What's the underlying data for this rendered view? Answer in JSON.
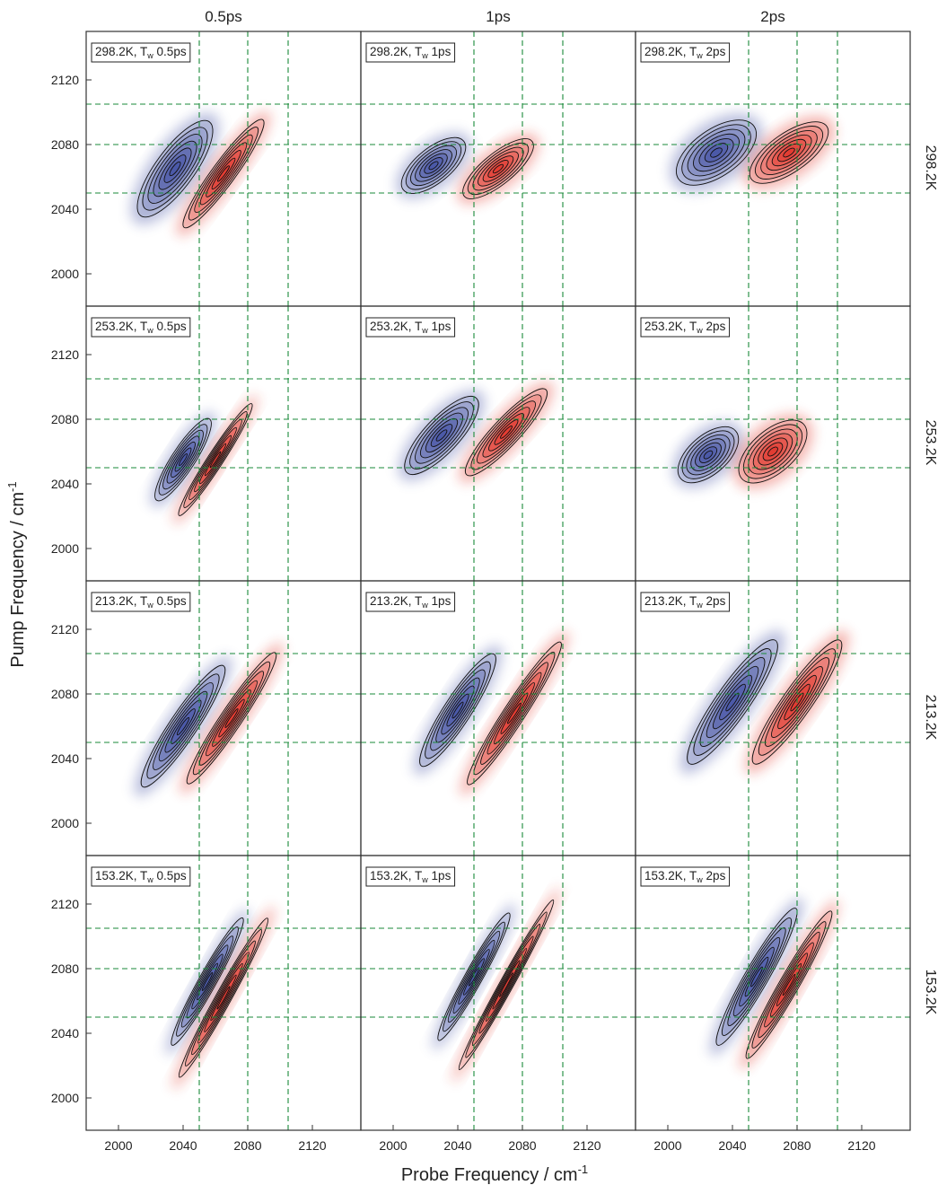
{
  "figure": {
    "column_headers": [
      "0.5ps",
      "1ps",
      "2ps"
    ],
    "row_labels": [
      "298.2K",
      "253.2K",
      "213.2K",
      "153.2K"
    ],
    "xlabel_main": "Probe Frequency / cm",
    "xlabel_sup": "-1",
    "ylabel_main": "Pump Frequency / cm",
    "ylabel_sup": "-1"
  },
  "chart_data": {
    "type": "heatmap",
    "subtype": "2D IR contour spectra grid (4 rows x 3 columns)",
    "x_axis": {
      "label": "Probe Frequency / cm-1",
      "ticks": [
        2000,
        2040,
        2080,
        2120
      ],
      "range": [
        1980,
        2150
      ]
    },
    "y_axis": {
      "label": "Pump Frequency / cm-1",
      "ticks": [
        2000,
        2040,
        2080,
        2120
      ],
      "range": [
        1980,
        2150
      ]
    },
    "reference_lines": {
      "style": "dashed",
      "color": "#1a8a3a",
      "x": [
        2050,
        2080,
        2105
      ],
      "y": [
        2050,
        2080,
        2105
      ]
    },
    "colors": {
      "negative": "#3a4aa0",
      "positive": "#e02a1f",
      "contour": "#111111"
    },
    "grid": false,
    "panels": [
      {
        "row": 0,
        "col": 0,
        "label": {
          "temp": "298.2K, T",
          "sub": "w",
          "tw": " 0.5ps"
        },
        "neg_peak": [
          2035,
          2065
        ],
        "pos_peak": [
          2065,
          2062
        ],
        "neg_width": [
          48,
          20
        ],
        "pos_width": [
          55,
          12
        ],
        "tilt": 0.72
      },
      {
        "row": 0,
        "col": 1,
        "label": {
          "temp": "298.2K, T",
          "sub": "w",
          "tw": " 1ps"
        },
        "neg_peak": [
          2025,
          2067
        ],
        "pos_peak": [
          2065,
          2065
        ],
        "neg_width": [
          32,
          18
        ],
        "pos_width": [
          36,
          16
        ],
        "tilt": 0.35
      },
      {
        "row": 0,
        "col": 2,
        "label": {
          "temp": "298.2K, T",
          "sub": "w",
          "tw": " 2ps"
        },
        "neg_peak": [
          2030,
          2075
        ],
        "pos_peak": [
          2075,
          2075
        ],
        "neg_width": [
          38,
          24
        ],
        "pos_width": [
          38,
          20
        ],
        "tilt": 0.25
      },
      {
        "row": 1,
        "col": 0,
        "label": {
          "temp": "253.2K, T",
          "sub": "w",
          "tw": " 0.5ps"
        },
        "neg_peak": [
          2040,
          2055
        ],
        "pos_peak": [
          2060,
          2055
        ],
        "neg_width": [
          40,
          12
        ],
        "pos_width": [
          55,
          8
        ],
        "tilt": 0.8
      },
      {
        "row": 1,
        "col": 1,
        "label": {
          "temp": "253.2K, T",
          "sub": "w",
          "tw": " 1ps"
        },
        "neg_peak": [
          2030,
          2070
        ],
        "pos_peak": [
          2070,
          2072
        ],
        "neg_width": [
          42,
          18
        ],
        "pos_width": [
          48,
          14
        ],
        "tilt": 0.55
      },
      {
        "row": 1,
        "col": 2,
        "label": {
          "temp": "253.2K, T",
          "sub": "w",
          "tw": " 2ps"
        },
        "neg_peak": [
          2025,
          2058
        ],
        "pos_peak": [
          2065,
          2060
        ],
        "neg_width": [
          30,
          20
        ],
        "pos_width": [
          34,
          22
        ],
        "tilt": 0.4
      },
      {
        "row": 2,
        "col": 0,
        "label": {
          "temp": "213.2K, T",
          "sub": "w",
          "tw": " 0.5ps"
        },
        "neg_peak": [
          2040,
          2060
        ],
        "pos_peak": [
          2070,
          2065
        ],
        "neg_width": [
          60,
          14
        ],
        "pos_width": [
          65,
          11
        ],
        "tilt": 0.78
      },
      {
        "row": 2,
        "col": 1,
        "label": {
          "temp": "213.2K, T",
          "sub": "w",
          "tw": " 1ps"
        },
        "neg_peak": [
          2040,
          2070
        ],
        "pos_peak": [
          2075,
          2068
        ],
        "neg_width": [
          55,
          14
        ],
        "pos_width": [
          70,
          11
        ],
        "tilt": 0.8
      },
      {
        "row": 2,
        "col": 2,
        "label": {
          "temp": "213.2K, T",
          "sub": "w",
          "tw": " 2ps"
        },
        "neg_peak": [
          2040,
          2075
        ],
        "pos_peak": [
          2080,
          2075
        ],
        "neg_width": [
          62,
          17
        ],
        "pos_width": [
          62,
          15
        ],
        "tilt": 0.75
      },
      {
        "row": 3,
        "col": 0,
        "label": {
          "temp": "153.2K, T",
          "sub": "w",
          "tw": " 0.5ps"
        },
        "neg_peak": [
          2055,
          2072
        ],
        "pos_peak": [
          2065,
          2062
        ],
        "neg_width": [
          60,
          9
        ],
        "pos_width": [
          75,
          8
        ],
        "tilt": 0.9
      },
      {
        "row": 3,
        "col": 1,
        "label": {
          "temp": "153.2K, T",
          "sub": "w",
          "tw": " 1ps"
        },
        "neg_peak": [
          2050,
          2075
        ],
        "pos_peak": [
          2070,
          2070
        ],
        "neg_width": [
          60,
          9
        ],
        "pos_width": [
          80,
          7
        ],
        "tilt": 0.9
      },
      {
        "row": 3,
        "col": 2,
        "label": {
          "temp": "153.2K, T",
          "sub": "w",
          "tw": " 2ps"
        },
        "neg_peak": [
          2055,
          2075
        ],
        "pos_peak": [
          2075,
          2070
        ],
        "neg_width": [
          65,
          12
        ],
        "pos_width": [
          70,
          10
        ],
        "tilt": 0.88
      }
    ]
  }
}
